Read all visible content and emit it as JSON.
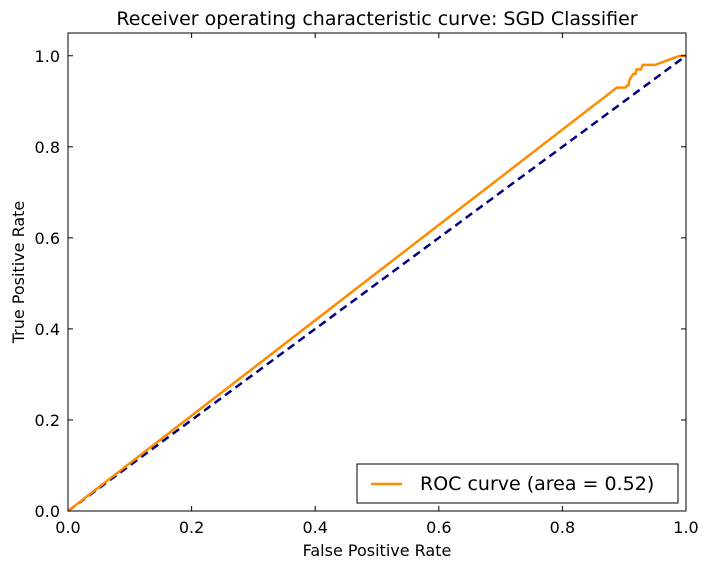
{
  "chart_data": {
    "type": "line",
    "title": "Receiver operating characteristic curve: SGD Classifier",
    "xlabel": "False Positive Rate",
    "ylabel": "True Positive Rate",
    "xlim": [
      0.0,
      1.0
    ],
    "ylim": [
      0.0,
      1.05
    ],
    "xticks": [
      "0.0",
      "0.2",
      "0.4",
      "0.6",
      "0.8",
      "1.0"
    ],
    "yticks": [
      "0.0",
      "0.2",
      "0.4",
      "0.6",
      "0.8",
      "1.0"
    ],
    "grid": false,
    "legend_position": "lower-right",
    "series": [
      {
        "name": "ROC curve (area = 0.52)",
        "color": "#ff8c00",
        "style": "solid",
        "x": [
          0.0,
          0.888,
          0.9,
          0.902,
          0.905,
          0.907,
          0.908,
          0.91,
          0.912,
          0.915,
          0.918,
          0.92,
          0.925,
          0.927,
          0.93,
          0.932,
          0.935,
          0.945,
          0.95,
          0.96,
          0.97,
          0.98,
          0.99,
          1.0
        ],
        "y": [
          0.0,
          0.93,
          0.93,
          0.93,
          0.935,
          0.935,
          0.945,
          0.95,
          0.955,
          0.96,
          0.96,
          0.97,
          0.97,
          0.97,
          0.98,
          0.98,
          0.98,
          0.98,
          0.98,
          0.985,
          0.99,
          0.995,
          1.0,
          1.0
        ]
      },
      {
        "name": "",
        "color": "#000080",
        "style": "dashed",
        "x": [
          0.0,
          1.0
        ],
        "y": [
          0.0,
          1.0
        ]
      }
    ]
  }
}
